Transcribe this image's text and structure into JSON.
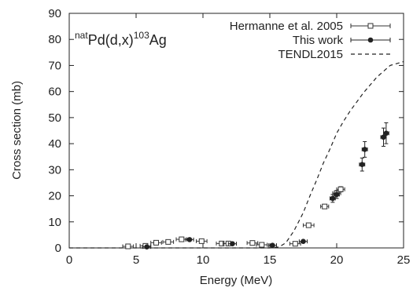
{
  "chart_data": {
    "type": "scatter",
    "title": "",
    "annotation": {
      "sup1": "nat",
      "main1": "Pd(d,x)",
      "sup2": "103",
      "main2": "Ag"
    },
    "xlabel": "Energy (MeV)",
    "ylabel": "Cross section (mb)",
    "xlim": [
      0,
      25
    ],
    "ylim": [
      0,
      90
    ],
    "xticks": [
      0,
      5,
      10,
      15,
      20,
      25
    ],
    "yticks": [
      0,
      10,
      20,
      30,
      40,
      50,
      60,
      70,
      80,
      90
    ],
    "grid": false,
    "legend_position": "top-right",
    "series": [
      {
        "name": "Hermanne et al. 2005",
        "marker": "open-square",
        "color": "#333333",
        "points": [
          {
            "x": 4.4,
            "y": 0.6,
            "xerr": 0.4,
            "yerr": 0.2
          },
          {
            "x": 5.7,
            "y": 0.8,
            "xerr": 0.4,
            "yerr": 0.2
          },
          {
            "x": 6.5,
            "y": 2.0,
            "xerr": 0.4,
            "yerr": 0.3
          },
          {
            "x": 7.4,
            "y": 2.3,
            "xerr": 0.4,
            "yerr": 0.3
          },
          {
            "x": 8.4,
            "y": 3.3,
            "xerr": 0.4,
            "yerr": 0.3
          },
          {
            "x": 9.9,
            "y": 2.6,
            "xerr": 0.4,
            "yerr": 0.3
          },
          {
            "x": 11.4,
            "y": 1.7,
            "xerr": 0.4,
            "yerr": 0.3
          },
          {
            "x": 11.9,
            "y": 1.7,
            "xerr": 0.4,
            "yerr": 0.3
          },
          {
            "x": 13.7,
            "y": 1.9,
            "xerr": 0.4,
            "yerr": 0.3
          },
          {
            "x": 14.4,
            "y": 1.2,
            "xerr": 0.4,
            "yerr": 0.3
          },
          {
            "x": 16.9,
            "y": 1.6,
            "xerr": 0.4,
            "yerr": 0.3
          },
          {
            "x": 17.9,
            "y": 8.7,
            "xerr": 0.4,
            "yerr": 0.5
          },
          {
            "x": 19.1,
            "y": 15.9,
            "xerr": 0.3,
            "yerr": 0.8
          },
          {
            "x": 20.0,
            "y": 21.0,
            "xerr": 0.3,
            "yerr": 1.0
          },
          {
            "x": 20.3,
            "y": 22.5,
            "xerr": 0.3,
            "yerr": 1.0
          }
        ]
      },
      {
        "name": "This work",
        "marker": "filled-circle",
        "color": "#222222",
        "points": [
          {
            "x": 5.8,
            "y": 0.4,
            "xerr": 0.3,
            "yerr": 0.2
          },
          {
            "x": 9.0,
            "y": 3.2,
            "xerr": 0.3,
            "yerr": 0.3
          },
          {
            "x": 12.2,
            "y": 1.6,
            "xerr": 0.3,
            "yerr": 0.3
          },
          {
            "x": 15.2,
            "y": 1.0,
            "xerr": 0.3,
            "yerr": 0.3
          },
          {
            "x": 17.5,
            "y": 2.5,
            "xerr": 0.3,
            "yerr": 0.5
          },
          {
            "x": 19.7,
            "y": 19.0,
            "xerr": 0.2,
            "yerr": 1.5
          },
          {
            "x": 20.0,
            "y": 20.5,
            "xerr": 0.2,
            "yerr": 1.5
          },
          {
            "x": 21.9,
            "y": 32.0,
            "xerr": 0.2,
            "yerr": 2.5
          },
          {
            "x": 22.1,
            "y": 37.8,
            "xerr": 0.2,
            "yerr": 3.0
          },
          {
            "x": 23.5,
            "y": 42.5,
            "xerr": 0.2,
            "yerr": 3.5
          },
          {
            "x": 23.7,
            "y": 44.0,
            "xerr": 0.2,
            "yerr": 4.0
          }
        ]
      },
      {
        "name": "TENDL2015",
        "style": "dashed-line",
        "color": "#222222",
        "x": [
          0,
          15.0,
          15.7,
          16.2,
          16.8,
          17.5,
          18.0,
          18.5,
          19.0,
          19.5,
          20.0,
          20.5,
          21.0,
          22.0,
          23.0,
          24.0,
          25.0
        ],
        "y": [
          0,
          0,
          0.4,
          2.0,
          6.5,
          13.5,
          20.0,
          26.0,
          32.5,
          38.0,
          44.0,
          48.5,
          52.5,
          59.5,
          65.5,
          70.0,
          71.5
        ]
      }
    ]
  }
}
